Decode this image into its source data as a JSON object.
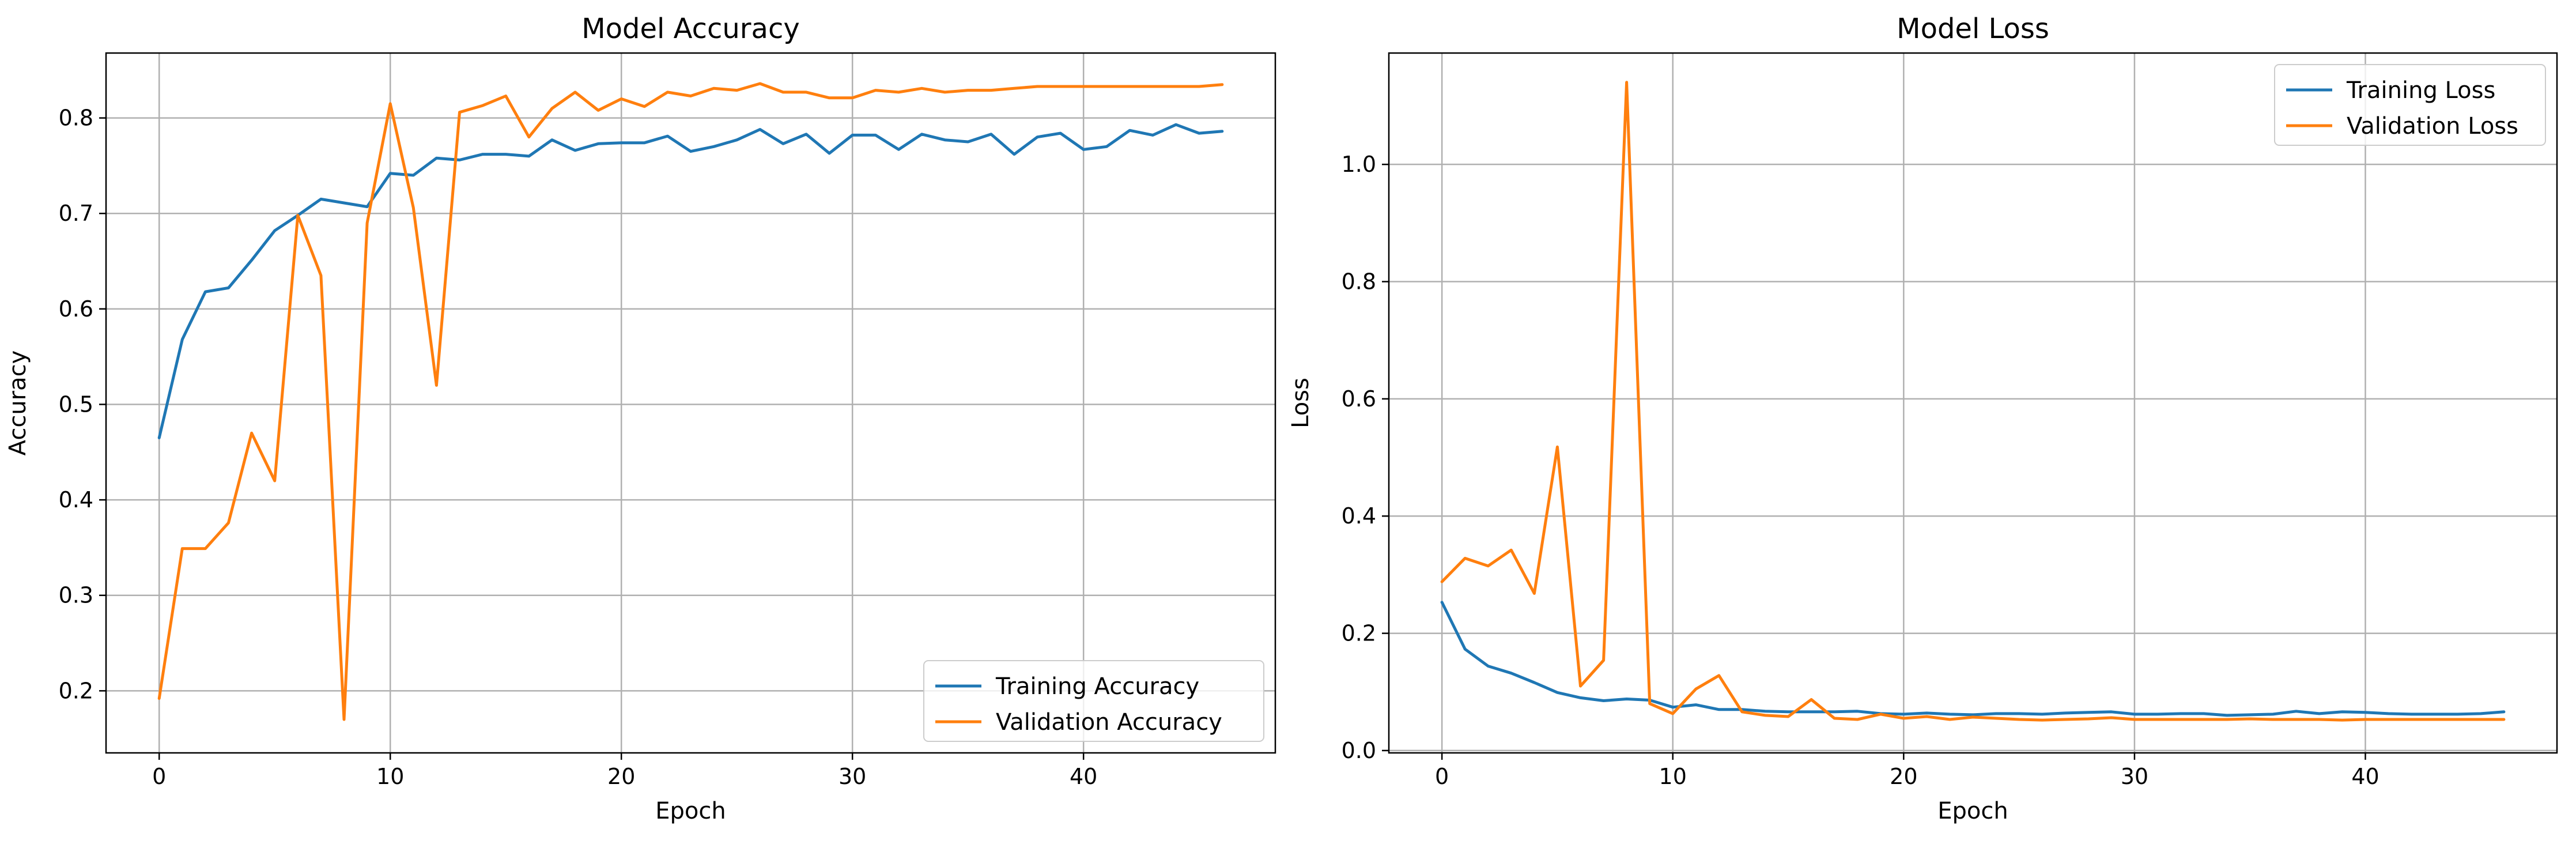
{
  "colors": {
    "training": "#1f77b4",
    "validation": "#ff7f0e",
    "grid": "#b0b0b0"
  },
  "chart_data": [
    {
      "type": "line",
      "title": "Model Accuracy",
      "xlabel": "Epoch",
      "ylabel": "Accuracy",
      "xlim": [
        -2.3,
        48.3
      ],
      "ylim": [
        0.135,
        0.868
      ],
      "xticks": [
        0,
        10,
        20,
        30,
        40
      ],
      "yticks": [
        0.2,
        0.3,
        0.4,
        0.5,
        0.6,
        0.7,
        0.8
      ],
      "grid": true,
      "legend_position": "bottom-right",
      "x": [
        0,
        1,
        2,
        3,
        4,
        5,
        6,
        7,
        8,
        9,
        10,
        11,
        12,
        13,
        14,
        15,
        16,
        17,
        18,
        19,
        20,
        21,
        22,
        23,
        24,
        25,
        26,
        27,
        28,
        29,
        30,
        31,
        32,
        33,
        34,
        35,
        36,
        37,
        38,
        39,
        40,
        41,
        42,
        43,
        44,
        45,
        46
      ],
      "series": [
        {
          "name": "Training Accuracy",
          "values": [
            0.465,
            0.568,
            0.618,
            0.622,
            0.651,
            0.682,
            0.698,
            0.715,
            0.711,
            0.707,
            0.742,
            0.74,
            0.758,
            0.756,
            0.762,
            0.762,
            0.76,
            0.777,
            0.766,
            0.773,
            0.774,
            0.774,
            0.781,
            0.765,
            0.77,
            0.777,
            0.788,
            0.773,
            0.783,
            0.763,
            0.782,
            0.782,
            0.767,
            0.783,
            0.777,
            0.775,
            0.783,
            0.762,
            0.78,
            0.784,
            0.767,
            0.77,
            0.787,
            0.782,
            0.793,
            0.784,
            0.786
          ]
        },
        {
          "name": "Validation Accuracy",
          "values": [
            0.192,
            0.349,
            0.349,
            0.376,
            0.47,
            0.42,
            0.698,
            0.635,
            0.17,
            0.69,
            0.815,
            0.706,
            0.52,
            0.806,
            0.813,
            0.823,
            0.78,
            0.81,
            0.827,
            0.808,
            0.82,
            0.812,
            0.827,
            0.823,
            0.831,
            0.829,
            0.836,
            0.827,
            0.827,
            0.821,
            0.821,
            0.829,
            0.827,
            0.831,
            0.827,
            0.829,
            0.829,
            0.831,
            0.833,
            0.833,
            0.833,
            0.833,
            0.833,
            0.833,
            0.833,
            0.833,
            0.835
          ]
        }
      ]
    },
    {
      "type": "line",
      "title": "Model Loss",
      "xlabel": "Epoch",
      "ylabel": "Loss",
      "xlim": [
        -2.3,
        48.3
      ],
      "ylim": [
        -0.004,
        1.19
      ],
      "xticks": [
        0,
        10,
        20,
        30,
        40
      ],
      "yticks": [
        0.0,
        0.2,
        0.4,
        0.6,
        0.8,
        1.0
      ],
      "ytick_labels": [
        "0.0",
        "0.2",
        "0.4",
        "0.6",
        "0.8",
        "1.0"
      ],
      "grid": true,
      "legend_position": "top-right",
      "x": [
        0,
        1,
        2,
        3,
        4,
        5,
        6,
        7,
        8,
        9,
        10,
        11,
        12,
        13,
        14,
        15,
        16,
        17,
        18,
        19,
        20,
        21,
        22,
        23,
        24,
        25,
        26,
        27,
        28,
        29,
        30,
        31,
        32,
        33,
        34,
        35,
        36,
        37,
        38,
        39,
        40,
        41,
        42,
        43,
        44,
        45,
        46
      ],
      "series": [
        {
          "name": "Training Loss",
          "values": [
            0.253,
            0.173,
            0.144,
            0.132,
            0.116,
            0.099,
            0.09,
            0.085,
            0.088,
            0.086,
            0.074,
            0.078,
            0.07,
            0.07,
            0.067,
            0.066,
            0.066,
            0.066,
            0.067,
            0.063,
            0.062,
            0.064,
            0.062,
            0.061,
            0.063,
            0.063,
            0.062,
            0.064,
            0.065,
            0.066,
            0.062,
            0.062,
            0.063,
            0.063,
            0.06,
            0.061,
            0.062,
            0.067,
            0.063,
            0.066,
            0.065,
            0.063,
            0.062,
            0.062,
            0.062,
            0.063,
            0.066
          ]
        },
        {
          "name": "Validation Loss",
          "values": [
            0.288,
            0.328,
            0.315,
            0.342,
            0.268,
            0.518,
            0.11,
            0.154,
            1.14,
            0.08,
            0.063,
            0.105,
            0.128,
            0.066,
            0.06,
            0.058,
            0.087,
            0.055,
            0.053,
            0.062,
            0.055,
            0.058,
            0.053,
            0.057,
            0.055,
            0.053,
            0.052,
            0.053,
            0.054,
            0.056,
            0.053,
            0.053,
            0.053,
            0.053,
            0.053,
            0.054,
            0.053,
            0.053,
            0.053,
            0.052,
            0.053,
            0.053,
            0.053,
            0.053,
            0.053,
            0.053,
            0.053
          ]
        }
      ]
    }
  ]
}
